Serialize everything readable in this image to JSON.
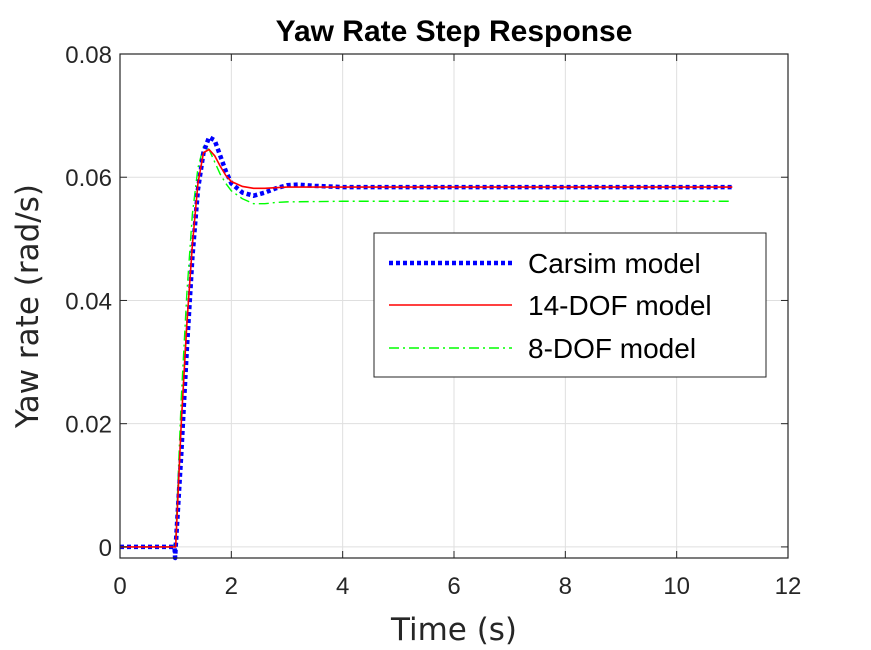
{
  "chart_data": {
    "type": "line",
    "title": "Yaw Rate Step Response",
    "xlabel": "Time (s)",
    "ylabel": "Yaw rate (rad/s)",
    "xlim": [
      0,
      12
    ],
    "ylim": [
      -0.0018,
      0.08
    ],
    "xticks": [
      0,
      2,
      4,
      6,
      8,
      10,
      12
    ],
    "yticks": [
      0,
      0.02,
      0.04,
      0.06,
      0.08
    ],
    "xtick_labels": [
      "0",
      "2",
      "4",
      "6",
      "8",
      "10",
      "12"
    ],
    "ytick_labels": [
      "0",
      "0.02",
      "0.04",
      "0.06",
      "0.08"
    ],
    "grid": true,
    "legend_position": "center-right",
    "series": [
      {
        "name": "Carsim model",
        "color": "#0000ff",
        "style": "dotted",
        "points": [
          [
            0,
            0
          ],
          [
            0.98,
            0
          ],
          [
            0.99,
            -0.0018
          ],
          [
            1.0,
            0
          ],
          [
            1.1,
            0.015
          ],
          [
            1.2,
            0.032
          ],
          [
            1.3,
            0.047
          ],
          [
            1.4,
            0.058
          ],
          [
            1.5,
            0.064
          ],
          [
            1.6,
            0.0665
          ],
          [
            1.7,
            0.066
          ],
          [
            1.8,
            0.0635
          ],
          [
            1.9,
            0.061
          ],
          [
            2.0,
            0.059
          ],
          [
            2.2,
            0.0575
          ],
          [
            2.4,
            0.057
          ],
          [
            2.6,
            0.0575
          ],
          [
            2.8,
            0.0582
          ],
          [
            3.0,
            0.0587
          ],
          [
            3.2,
            0.0588
          ],
          [
            3.5,
            0.0586
          ],
          [
            4.0,
            0.0584
          ],
          [
            6.0,
            0.0584
          ],
          [
            8.0,
            0.0584
          ],
          [
            11.0,
            0.0584
          ]
        ]
      },
      {
        "name": "14-DOF model",
        "color": "#ff0000",
        "style": "solid",
        "points": [
          [
            0,
            0
          ],
          [
            1.0,
            0
          ],
          [
            1.1,
            0.02
          ],
          [
            1.2,
            0.036
          ],
          [
            1.3,
            0.049
          ],
          [
            1.4,
            0.059
          ],
          [
            1.5,
            0.064
          ],
          [
            1.6,
            0.0645
          ],
          [
            1.7,
            0.0635
          ],
          [
            1.8,
            0.0618
          ],
          [
            1.9,
            0.0603
          ],
          [
            2.0,
            0.0593
          ],
          [
            2.2,
            0.0585
          ],
          [
            2.4,
            0.0582
          ],
          [
            2.6,
            0.0582
          ],
          [
            3.0,
            0.0584
          ],
          [
            4.0,
            0.0584
          ],
          [
            6.0,
            0.0584
          ],
          [
            8.0,
            0.0584
          ],
          [
            11.0,
            0.0584
          ]
        ]
      },
      {
        "name": "8-DOF model",
        "color": "#00ff00",
        "style": "dashdot",
        "points": [
          [
            0,
            0
          ],
          [
            0.95,
            0
          ],
          [
            1.0,
            0.001
          ],
          [
            1.1,
            0.024
          ],
          [
            1.2,
            0.041
          ],
          [
            1.3,
            0.054
          ],
          [
            1.4,
            0.0615
          ],
          [
            1.5,
            0.065
          ],
          [
            1.6,
            0.0645
          ],
          [
            1.7,
            0.0625
          ],
          [
            1.8,
            0.0605
          ],
          [
            1.9,
            0.059
          ],
          [
            2.0,
            0.0578
          ],
          [
            2.2,
            0.0565
          ],
          [
            2.4,
            0.0557
          ],
          [
            2.6,
            0.0557
          ],
          [
            2.8,
            0.0559
          ],
          [
            3.0,
            0.056
          ],
          [
            4.0,
            0.0561
          ],
          [
            6.0,
            0.0561
          ],
          [
            8.0,
            0.0561
          ],
          [
            11.0,
            0.0561
          ]
        ]
      }
    ]
  }
}
